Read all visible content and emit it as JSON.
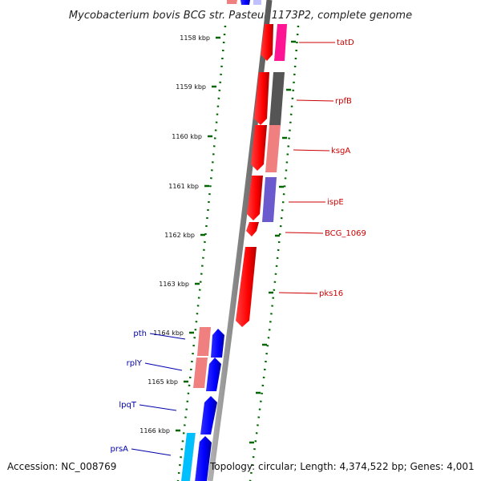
{
  "title": "Mycobacterium bovis BCG str. Pasteur 1173P2, complete genome",
  "footer": {
    "accession": "Accession: NC_008769",
    "summary": "Topology: circular; Length: 4,374,522 bp; Genes: 4,001"
  },
  "kbp_ticks": [
    {
      "label": "1158 kbp"
    },
    {
      "label": "1159 kbp"
    },
    {
      "label": "1160 kbp"
    },
    {
      "label": "1161 kbp"
    },
    {
      "label": "1162 kbp"
    },
    {
      "label": "1163 kbp"
    },
    {
      "label": "1164 kbp"
    },
    {
      "label": "1165 kbp"
    },
    {
      "label": "1166 kbp"
    }
  ],
  "gene_labels_right": [
    {
      "name": "tatD"
    },
    {
      "name": "rpfB"
    },
    {
      "name": "ksgA"
    },
    {
      "name": "ispE"
    },
    {
      "name": "BCG_1069"
    },
    {
      "name": "pks16"
    }
  ],
  "gene_labels_left": [
    {
      "name": "pth"
    },
    {
      "name": "rplY"
    },
    {
      "name": "lpqT"
    },
    {
      "name": "prsA"
    }
  ],
  "colors": {
    "forward_cds": "#ff0000",
    "reverse_cds": "#0000ff",
    "right_label": "#cc0000",
    "left_label": "#0000aa",
    "backbone": "#808080",
    "tick": "#006600",
    "cog_pink": "#f08080",
    "cog_magenta": "#ff1493",
    "cog_gray": "#666666",
    "cog_purple": "#6a5acd",
    "cog_cyan": "#00bfff"
  }
}
